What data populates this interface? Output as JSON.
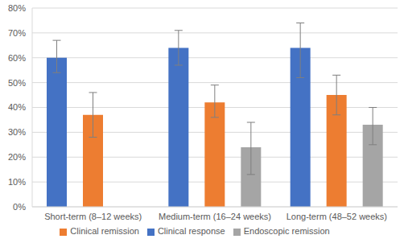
{
  "chart_data": {
    "type": "bar",
    "categories": [
      "Short-term (8–12 weeks)",
      "Medium-term (16–24 weeks)",
      "Long-term (48–52 weeks)"
    ],
    "series": [
      {
        "name": "Clinical response",
        "color": "#4472c4",
        "values": [
          60,
          64,
          64
        ],
        "ci": [
          [
            54,
            67
          ],
          [
            57,
            71
          ],
          [
            52,
            74
          ]
        ]
      },
      {
        "name": "Clinical remission",
        "color": "#ed7d31",
        "values": [
          37,
          42,
          45
        ],
        "ci": [
          [
            28,
            46
          ],
          [
            36,
            49
          ],
          [
            37,
            53
          ]
        ]
      },
      {
        "name": "Endoscopic remission",
        "color": "#a5a5a5",
        "values": [
          null,
          24,
          33
        ],
        "ci": [
          null,
          [
            13,
            34
          ],
          [
            25,
            40
          ]
        ]
      }
    ],
    "ylim": [
      0,
      80
    ],
    "yticks": [
      {
        "value": 0,
        "label": "0%"
      },
      {
        "value": 10,
        "label": "10%"
      },
      {
        "value": 20,
        "label": "20%"
      },
      {
        "value": 30,
        "label": "30%"
      },
      {
        "value": 40,
        "label": "40%"
      },
      {
        "value": 50,
        "label": "50%"
      },
      {
        "value": 60,
        "label": "60%"
      },
      {
        "value": 70,
        "label": "70%"
      },
      {
        "value": 80,
        "label": "80%"
      }
    ],
    "grid": true,
    "legend": "bottom"
  }
}
